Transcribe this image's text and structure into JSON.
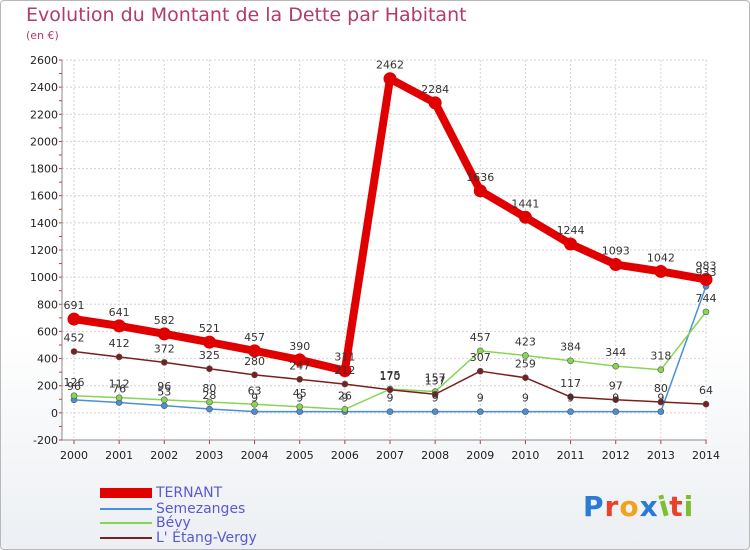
{
  "title": "Evolution du Montant de la Dette par Habitant",
  "subtitle": "(en €)",
  "logo": {
    "text": "Proxiti",
    "colors": [
      "#2b7bd6",
      "#e8412c",
      "#f4a21b",
      "#2b7bd6",
      "#7cbf2f",
      "#e8412c",
      "#7cbf2f"
    ]
  },
  "chart_data": {
    "type": "line",
    "title": "Evolution du Montant de la Dette par Habitant",
    "subtitle": "(en €)",
    "x": [
      "2000",
      "2001",
      "2002",
      "2003",
      "2004",
      "2005",
      "2006",
      "2007",
      "2008",
      "2009",
      "2010",
      "2011",
      "2012",
      "2013",
      "2014"
    ],
    "ylim": [
      -200,
      2600
    ],
    "yticks": [
      -200,
      0,
      200,
      400,
      600,
      800,
      1000,
      1200,
      1400,
      1600,
      1800,
      2000,
      2200,
      2400,
      2600
    ],
    "grid": true,
    "legend": "bottom-left",
    "series": [
      {
        "name": "TERNANT",
        "color": "#e00000",
        "values": [
          691,
          641,
          582,
          521,
          457,
          390,
          311,
          2462,
          2284,
          1636,
          1441,
          1244,
          1093,
          1042,
          983
        ],
        "labels": [
          "691",
          "641",
          "582",
          "521",
          "457",
          "390",
          "311",
          "2462",
          "2284",
          "1636",
          "1441",
          "1244",
          "1093",
          "1042",
          "983"
        ]
      },
      {
        "name": "Semezanges",
        "color": "#4a8fd8",
        "values": [
          96,
          76,
          53,
          28,
          9,
          9,
          9,
          9,
          9,
          9,
          9,
          9,
          9,
          9,
          933
        ],
        "labels": [
          "96",
          "76",
          "53",
          "28",
          "9",
          "9",
          "9",
          "9",
          "9",
          "9",
          "9",
          "9",
          "9",
          "9",
          "933"
        ]
      },
      {
        "name": "Bévy",
        "color": "#86d654",
        "values": [
          126,
          112,
          96,
          80,
          63,
          45,
          26,
          175,
          157,
          457,
          423,
          384,
          344,
          318,
          744
        ],
        "labels": [
          "126",
          "112",
          "96",
          "80",
          "63",
          "45",
          "26",
          "175",
          "157",
          "457",
          "423",
          "384",
          "344",
          "318",
          "744"
        ]
      },
      {
        "name": "L' Étang-Vergy",
        "color": "#7a1f1f",
        "values": [
          452,
          412,
          372,
          325,
          280,
          247,
          212,
          170,
          137,
          307,
          259,
          117,
          97,
          80,
          64
        ],
        "labels": [
          "452",
          "412",
          "372",
          "325",
          "280",
          "247",
          "212",
          "170",
          "137",
          "307",
          "259",
          "117",
          "97",
          "80",
          "64"
        ]
      }
    ]
  }
}
